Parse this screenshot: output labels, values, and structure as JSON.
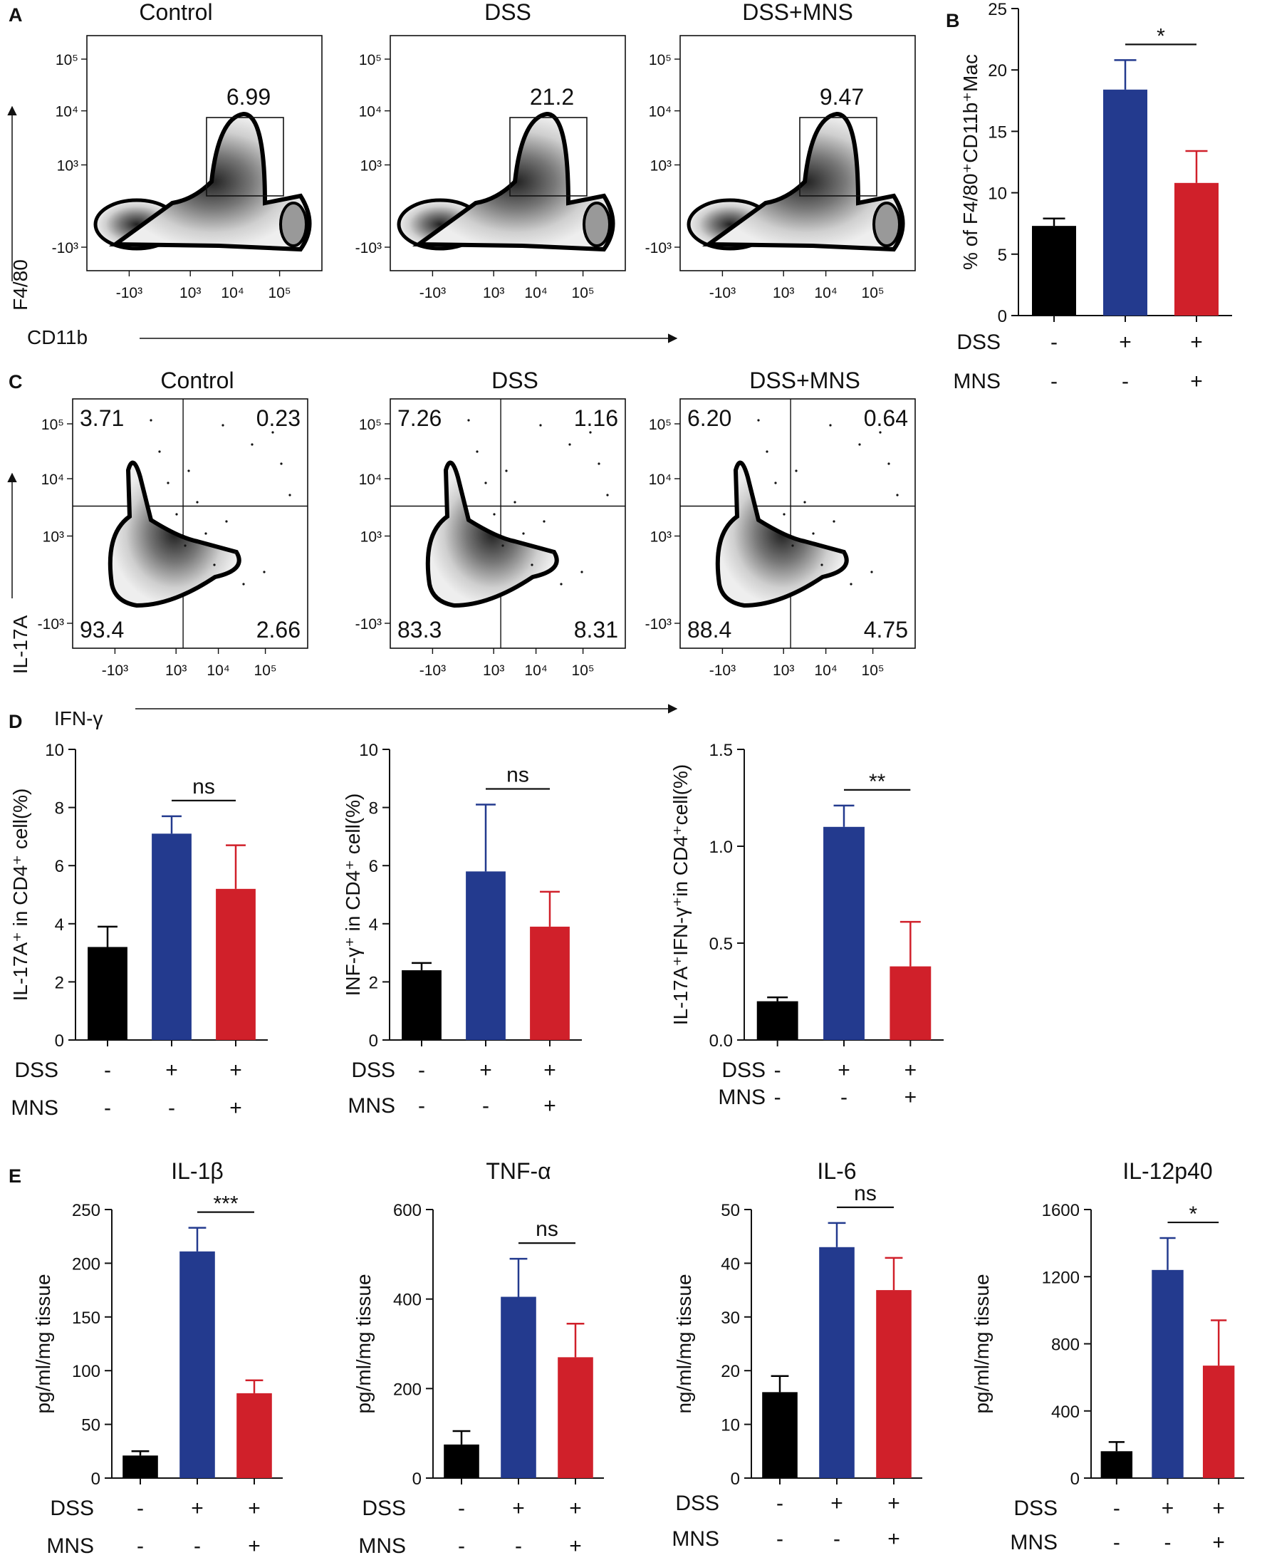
{
  "colors": {
    "control": "#000000",
    "dss": "#233a8e",
    "mns": "#d0202a"
  },
  "flow_panels": {
    "panel_a": {
      "letter": "A",
      "xlabel": "CD11b",
      "ylabel": "F4/80",
      "x_ticks": [
        "-10³",
        "10³",
        "10⁴",
        "10⁵"
      ],
      "y_ticks": [
        "10⁵",
        "10⁴",
        "10³",
        "-10³"
      ],
      "plots": [
        {
          "title": "Control",
          "gate_pct": "6.99"
        },
        {
          "title": "DSS",
          "gate_pct": "21.2"
        },
        {
          "title": "DSS+MNS",
          "gate_pct": "9.47"
        }
      ]
    },
    "panel_c": {
      "letter": "C",
      "xlabel": "IFN-γ",
      "ylabel": "IL-17A",
      "x_ticks": [
        "-10³",
        "10³",
        "10⁴",
        "10⁵"
      ],
      "y_ticks": [
        "10⁵",
        "10⁴",
        "10³",
        "-10³"
      ],
      "plots": [
        {
          "title": "Control",
          "quadrants": {
            "ul": "3.71",
            "ur": "0.23",
            "ll": "93.4",
            "lr": "2.66"
          }
        },
        {
          "title": "DSS",
          "quadrants": {
            "ul": "7.26",
            "ur": "1.16",
            "ll": "83.3",
            "lr": "8.31"
          }
        },
        {
          "title": "DSS+MNS",
          "quadrants": {
            "ul": "6.20",
            "ur": "0.64",
            "ll": "88.4",
            "lr": "4.75"
          }
        }
      ]
    }
  },
  "panel_letters": {
    "b": "B",
    "d": "D",
    "e": "E"
  },
  "group_rows": {
    "dss_label": "DSS",
    "mns_label": "MNS",
    "dss_signs": [
      "-",
      "+",
      "+"
    ],
    "mns_signs": [
      "-",
      "-",
      "+"
    ]
  },
  "chart_data": [
    {
      "id": "B",
      "type": "bar",
      "title": "",
      "ylabel": "% of F4/80⁺CD11b⁺Mac",
      "categories": [
        "Control",
        "DSS",
        "DSS+MNS"
      ],
      "values": [
        7.3,
        18.4,
        10.8
      ],
      "errors": [
        0.6,
        2.4,
        2.6
      ],
      "ylim": [
        0,
        25
      ],
      "ticks": [
        0,
        5,
        10,
        15,
        20,
        25
      ],
      "significance": "*"
    },
    {
      "id": "D1",
      "type": "bar",
      "title": "",
      "ylabel": "IL-17A⁺ in CD4⁺ cell(%)",
      "categories": [
        "Control",
        "DSS",
        "DSS+MNS"
      ],
      "values": [
        3.2,
        7.1,
        5.2
      ],
      "errors": [
        0.7,
        0.6,
        1.5
      ],
      "ylim": [
        0,
        10
      ],
      "ticks": [
        0,
        2,
        4,
        6,
        8,
        10
      ],
      "significance": "ns"
    },
    {
      "id": "D2",
      "type": "bar",
      "title": "",
      "ylabel": "INF-γ⁺ in CD4⁺ cell(%)",
      "categories": [
        "Control",
        "DSS",
        "DSS+MNS"
      ],
      "values": [
        2.4,
        5.8,
        3.9
      ],
      "errors": [
        0.25,
        2.3,
        1.2
      ],
      "ylim": [
        0,
        10
      ],
      "ticks": [
        0,
        2,
        4,
        6,
        8,
        10
      ],
      "significance": "ns"
    },
    {
      "id": "D3",
      "type": "bar",
      "title": "",
      "ylabel": "IL-17A⁺IFN-γ⁺in CD4⁺cell(%)",
      "categories": [
        "Control",
        "DSS",
        "DSS+MNS"
      ],
      "values": [
        0.2,
        1.1,
        0.38
      ],
      "errors": [
        0.02,
        0.11,
        0.23
      ],
      "ylim": [
        0,
        1.5
      ],
      "ticks": [
        "0.0",
        "0.5",
        "1.0",
        "1.5"
      ],
      "significance": "**"
    },
    {
      "id": "E1",
      "type": "bar",
      "title": "IL-1β",
      "ylabel": "pg/ml/mg tissue",
      "categories": [
        "Control",
        "DSS",
        "DSS+MNS"
      ],
      "values": [
        21,
        211,
        79
      ],
      "errors": [
        4,
        22,
        12
      ],
      "ylim": [
        0,
        250
      ],
      "ticks": [
        0,
        50,
        100,
        150,
        200,
        250
      ],
      "significance": "***"
    },
    {
      "id": "E2",
      "type": "bar",
      "title": "TNF-α",
      "ylabel": "pg/ml/mg tissue",
      "categories": [
        "Control",
        "DSS",
        "DSS+MNS"
      ],
      "values": [
        75,
        405,
        270
      ],
      "errors": [
        30,
        85,
        75
      ],
      "ylim": [
        0,
        600
      ],
      "ticks": [
        0,
        200,
        400,
        600
      ],
      "significance": "ns"
    },
    {
      "id": "E3",
      "type": "bar",
      "title": "IL-6",
      "ylabel": "ng/ml/mg tissue",
      "categories": [
        "Control",
        "DSS",
        "DSS+MNS"
      ],
      "values": [
        16,
        43,
        35
      ],
      "errors": [
        3,
        4.5,
        6
      ],
      "ylim": [
        0,
        50
      ],
      "ticks": [
        0,
        10,
        20,
        30,
        40,
        50
      ],
      "significance": "ns"
    },
    {
      "id": "E4",
      "type": "bar",
      "title": "IL-12p40",
      "ylabel": "pg/ml/mg tissue",
      "categories": [
        "Control",
        "DSS",
        "DSS+MNS"
      ],
      "values": [
        160,
        1240,
        670
      ],
      "errors": [
        55,
        190,
        270
      ],
      "ylim": [
        0,
        1600
      ],
      "ticks": [
        0,
        400,
        800,
        1200,
        1600
      ],
      "significance": "*"
    }
  ]
}
